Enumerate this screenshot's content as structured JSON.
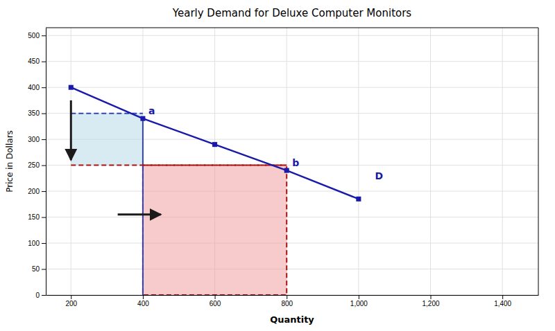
{
  "chart_data": {
    "type": "line",
    "title": "Yearly Demand for Deluxe Computer Monitors",
    "xlabel": "Quantity",
    "ylabel": "Price in Dollars",
    "x": [
      200,
      400,
      600,
      800,
      1000
    ],
    "values": [
      400,
      340,
      290,
      240,
      185
    ],
    "color": "#1a1aaa",
    "marker": "square",
    "xlim": [
      130,
      1500
    ],
    "ylim": [
      0,
      515
    ],
    "xticks": [
      200,
      400,
      600,
      800,
      {
        "value": 1000,
        "label": "1,000"
      },
      {
        "value": 1200,
        "label": "1,200"
      },
      {
        "value": 1400,
        "label": "1,400"
      }
    ],
    "yticks": [
      0,
      50,
      100,
      150,
      200,
      250,
      300,
      350,
      400,
      450,
      500
    ],
    "grid": true,
    "regions": [
      {
        "x0": 200,
        "x1": 400,
        "y0": 250,
        "y1": 350,
        "color": "#b8d8e8"
      },
      {
        "x0": 400,
        "x1": 800,
        "y0": 0,
        "y1": 250,
        "color": "#f0a0a0",
        "edge_color": "#aa1111",
        "line_style": "dashed"
      }
    ],
    "lines": [
      {
        "x": [
          400,
          400
        ],
        "y": [
          0,
          340
        ],
        "color": "#3344bb",
        "line_style": "solid"
      },
      {
        "x": [
          200,
          800
        ],
        "y": [
          250,
          250
        ],
        "color": "#aa1111",
        "line_style": "dashed"
      },
      {
        "x": [
          200,
          400
        ],
        "y": [
          350,
          350
        ],
        "color": "#3344bb",
        "line_style": "dashed"
      }
    ],
    "arrows": [
      {
        "x": [
          200,
          200
        ],
        "y": [
          375,
          260
        ],
        "color": "#1a1a1a"
      },
      {
        "x": [
          330,
          450
        ],
        "y": [
          155,
          155
        ],
        "color": "#1a1a1a"
      }
    ],
    "annotations": [
      {
        "text": "a",
        "x": 400,
        "y": 340
      },
      {
        "text": "b",
        "x": 800,
        "y": 240
      },
      {
        "text": "D",
        "x": 1030,
        "y": 215
      }
    ]
  }
}
